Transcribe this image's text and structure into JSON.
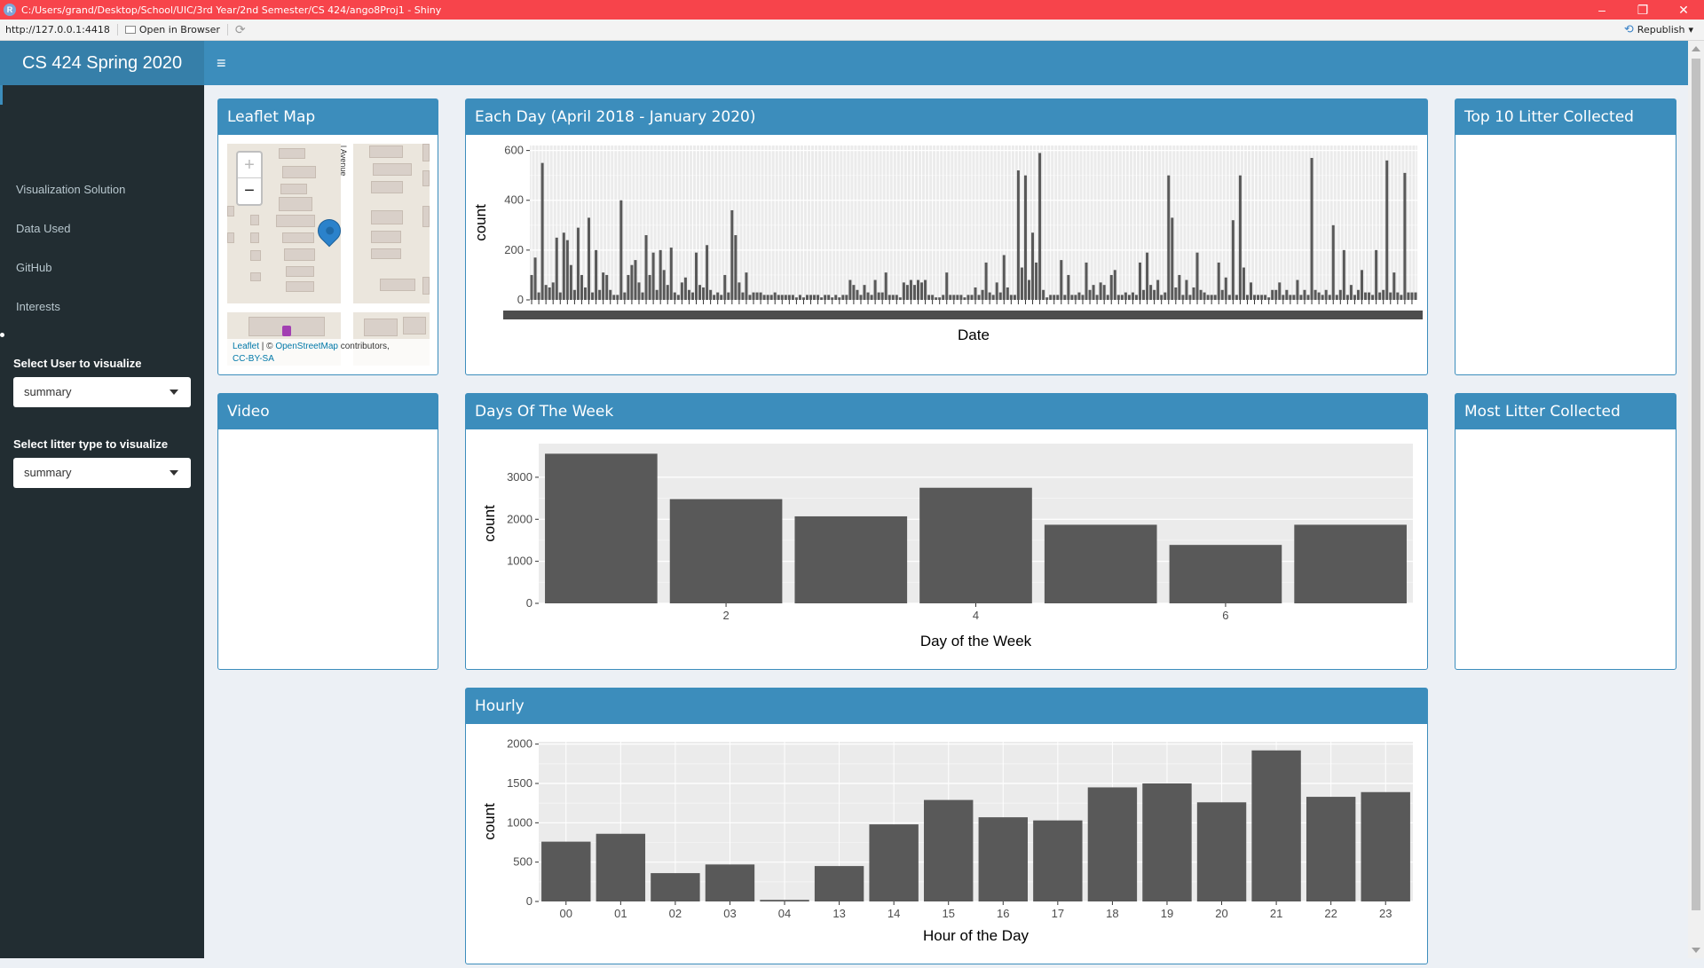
{
  "window": {
    "title": "C:/Users/grand/Desktop/School/UIC/3rd Year/2nd Semester/CS 424/ango8Proj1 - Shiny",
    "minimize": "–",
    "restore": "❐",
    "close": "✕"
  },
  "toolbar": {
    "url": "http://127.0.0.1:4418",
    "open_in_browser": "Open in Browser",
    "republish": "Republish"
  },
  "header": {
    "app_title": "CS 424 Spring 2020",
    "menu_toggle": "≡"
  },
  "sidebar": {
    "menu": [
      {
        "label": "Visualization Solution"
      },
      {
        "label": "Data Used"
      },
      {
        "label": "GitHub"
      },
      {
        "label": "Interests"
      }
    ],
    "select_user": {
      "label": "Select User to visualize",
      "value": "summary"
    },
    "select_litter": {
      "label": "Select litter type to visualize",
      "value": "summary"
    }
  },
  "boxes": {
    "leaflet_map": "Leaflet Map",
    "each_day": "Each Day (April 2018 - January 2020)",
    "top10": "Top 10 Litter Collected",
    "video": "Video",
    "days_of_week": "Days Of The Week",
    "most_litter": "Most Litter Collected",
    "hourly": "Hourly"
  },
  "map": {
    "street": "l Avenue",
    "zoom_in": "+",
    "zoom_out": "−",
    "attribution_leaflet": "Leaflet",
    "attribution_sep": " | © ",
    "attribution_osm": "OpenStreetMap",
    "attribution_contrib": " contributors,",
    "attribution_license": "CC-BY-SA"
  },
  "chart_data": [
    {
      "type": "bar",
      "title": "Each Day (April 2018 - January 2020)",
      "xlabel": "Date",
      "ylabel": "count",
      "ylim": [
        0,
        620
      ],
      "yticks": [
        0,
        200,
        400,
        600
      ],
      "grid": true,
      "values": [
        100,
        170,
        30,
        550,
        60,
        50,
        70,
        250,
        30,
        270,
        240,
        140,
        40,
        290,
        100,
        50,
        330,
        30,
        200,
        40,
        110,
        100,
        40,
        20,
        20,
        400,
        30,
        100,
        140,
        160,
        70,
        30,
        260,
        100,
        190,
        40,
        200,
        120,
        60,
        210,
        30,
        20,
        70,
        90,
        40,
        30,
        190,
        60,
        50,
        220,
        40,
        20,
        30,
        20,
        100,
        30,
        360,
        260,
        70,
        30,
        110,
        20,
        30,
        30,
        30,
        20,
        20,
        20,
        30,
        20,
        20,
        20,
        20,
        20,
        10,
        20,
        10,
        20,
        20,
        20,
        20,
        10,
        20,
        20,
        10,
        20,
        10,
        20,
        20,
        80,
        60,
        40,
        20,
        60,
        30,
        20,
        80,
        30,
        30,
        110,
        20,
        20,
        20,
        10,
        70,
        60,
        80,
        60,
        80,
        70,
        80,
        20,
        20,
        10,
        10,
        20,
        110,
        20,
        20,
        20,
        20,
        10,
        20,
        20,
        50,
        20,
        40,
        150,
        30,
        20,
        70,
        30,
        180,
        50,
        20,
        20,
        520,
        130,
        500,
        80,
        270,
        150,
        590,
        40,
        10,
        20,
        20,
        20,
        160,
        20,
        100,
        20,
        20,
        30,
        20,
        150,
        40,
        60,
        20,
        70,
        60,
        20,
        100,
        120,
        20,
        20,
        30,
        20,
        30,
        20,
        150,
        40,
        190,
        60,
        40,
        80,
        20,
        30,
        500,
        330,
        50,
        100,
        20,
        80,
        20,
        50,
        190,
        40,
        30,
        20,
        20,
        20,
        150,
        40,
        90,
        20,
        320,
        20,
        500,
        130,
        20,
        70,
        20,
        20,
        20,
        20,
        10,
        40,
        40,
        70,
        20,
        40,
        20,
        20,
        80,
        20,
        40,
        20,
        570,
        40,
        30,
        20,
        40,
        20,
        300,
        20,
        40,
        200,
        20,
        60,
        20,
        40,
        120,
        30,
        30,
        20,
        200,
        30,
        40,
        560,
        30,
        110,
        30,
        20,
        510,
        30,
        30,
        30
      ]
    },
    {
      "type": "bar",
      "title": "Days Of The Week",
      "xlabel": "Day of the Week",
      "ylabel": "count",
      "categories": [
        1,
        2,
        3,
        4,
        5,
        6,
        7
      ],
      "xticks": [
        2,
        4,
        6
      ],
      "values": [
        3560,
        2480,
        2070,
        2750,
        1870,
        1390,
        1870
      ],
      "ylim": [
        0,
        3800
      ],
      "yticks": [
        0,
        1000,
        2000,
        3000
      ],
      "grid": true
    },
    {
      "type": "bar",
      "title": "Hourly",
      "xlabel": "Hour of the Day",
      "ylabel": "count",
      "categories": [
        "00",
        "01",
        "02",
        "03",
        "04",
        "13",
        "14",
        "15",
        "16",
        "17",
        "18",
        "19",
        "20",
        "21",
        "22",
        "23"
      ],
      "values": [
        760,
        860,
        360,
        470,
        20,
        450,
        980,
        1290,
        1070,
        1030,
        1450,
        1500,
        1260,
        1920,
        1330,
        1390
      ],
      "ylim": [
        0,
        2030
      ],
      "yticks": [
        0,
        500,
        1000,
        1500,
        2000
      ],
      "grid": true
    }
  ]
}
